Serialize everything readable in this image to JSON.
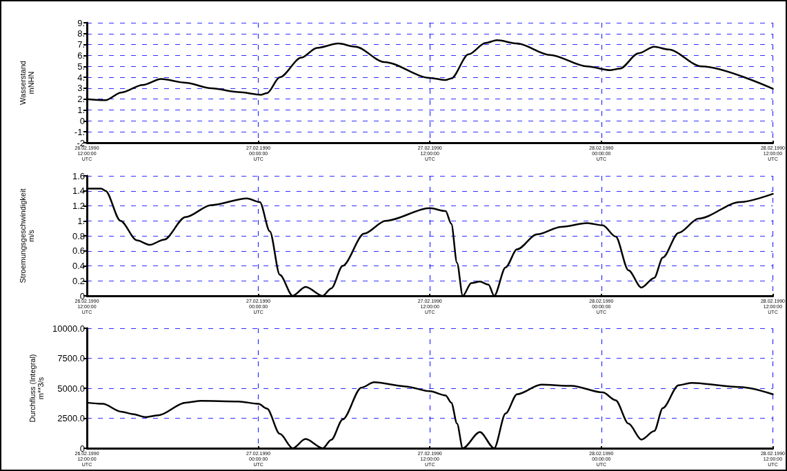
{
  "chart_data": [
    {
      "type": "line",
      "ylabel": "Wasserstand\nmNHN",
      "color": "#000000",
      "marker": "none",
      "grid": true,
      "x": [
        "1990-02-26T12:00",
        "1990-02-26T13:18",
        "1990-02-26T14:24",
        "1990-02-26T15:54",
        "1990-02-26T17:12",
        "1990-02-26T18:54",
        "1990-02-26T20:42",
        "1990-02-26T22:36",
        "1990-02-27T00:12",
        "1990-02-27T00:36",
        "1990-02-27T01:30",
        "1990-02-27T03:00",
        "1990-02-27T04:06",
        "1990-02-27T05:36",
        "1990-02-27T06:48",
        "1990-02-27T08:48",
        "1990-02-27T12:00",
        "1990-02-27T13:06",
        "1990-02-27T13:30",
        "1990-02-27T14:42",
        "1990-02-27T15:54",
        "1990-02-27T16:42",
        "1990-02-27T18:06",
        "1990-02-27T20:24",
        "1990-02-27T23:00",
        "1990-02-28T00:36",
        "1990-02-28T01:18",
        "1990-02-28T02:36",
        "1990-02-28T03:42",
        "1990-02-28T04:42",
        "1990-02-28T07:00",
        "1990-02-28T12:00"
      ],
      "values": [
        2.0,
        1.9,
        2.6,
        3.3,
        3.85,
        3.5,
        3.0,
        2.65,
        2.4,
        2.55,
        4.0,
        5.8,
        6.7,
        7.1,
        6.8,
        5.4,
        3.95,
        3.75,
        3.9,
        6.1,
        7.15,
        7.4,
        7.1,
        6.05,
        5.0,
        4.65,
        4.8,
        6.2,
        6.8,
        6.55,
        5.0,
        2.95
      ],
      "xlim": [
        "1990-02-26T12:00",
        "1990-02-28T12:00"
      ],
      "xticks": [
        {
          "value": "1990-02-26T12:00",
          "label": "26.02.1990\n12:00:00\nUTC"
        },
        {
          "value": "1990-02-27T00:00",
          "label": "27.02.1990\n00:00:00\nUTC"
        },
        {
          "value": "1990-02-27T12:00",
          "label": "27.02.1990\n12:00:00\nUTC"
        },
        {
          "value": "1990-02-28T00:00",
          "label": "28.02.1990\n00:00:00\nUTC"
        },
        {
          "value": "1990-02-28T12:00",
          "label": "28.02.1990\n12:00:00\nUTC"
        }
      ],
      "ylim": [
        -2,
        9
      ],
      "yticks": [
        {
          "value": -2,
          "label": "-2"
        },
        {
          "value": -1,
          "label": "-1."
        },
        0,
        {
          "value": 1,
          "label": "1."
        },
        {
          "value": 2,
          "label": "2."
        },
        {
          "value": 3,
          "label": "3."
        },
        {
          "value": 4,
          "label": "4."
        },
        {
          "value": 5,
          "label": "5."
        },
        {
          "value": 6,
          "label": "6."
        },
        {
          "value": 7,
          "label": "7."
        },
        {
          "value": 8,
          "label": "8."
        },
        {
          "value": 9,
          "label": "9."
        }
      ]
    },
    {
      "type": "line",
      "ylabel": "Stroemungsgeschwindigkeit\nm/s",
      "color": "#000000",
      "marker": "none",
      "grid": true,
      "x": [
        "1990-02-26T12:00",
        "1990-02-26T13:00",
        "1990-02-26T13:18",
        "1990-02-26T14:21",
        "1990-02-26T15:30",
        "1990-02-26T16:24",
        "1990-02-26T17:24",
        "1990-02-26T18:54",
        "1990-02-26T20:42",
        "1990-02-26T23:12",
        "1990-02-27T00:06",
        "1990-02-27T00:48",
        "1990-02-27T01:30",
        "1990-02-27T02:24",
        "1990-02-27T03:18",
        "1990-02-27T04:30",
        "1990-02-27T05:06",
        "1990-02-27T05:54",
        "1990-02-27T07:24",
        "1990-02-27T08:54",
        "1990-02-27T12:00",
        "1990-02-27T13:06",
        "1990-02-27T13:30",
        "1990-02-27T13:54",
        "1990-02-27T14:18",
        "1990-02-27T14:54",
        "1990-02-27T15:30",
        "1990-02-27T16:06",
        "1990-02-27T16:30",
        "1990-02-27T17:18",
        "1990-02-27T18:06",
        "1990-02-27T19:30",
        "1990-02-27T21:12",
        "1990-02-27T23:00",
        "1990-02-28T00:06",
        "1990-02-28T01:00",
        "1990-02-28T01:54",
        "1990-02-28T02:48",
        "1990-02-28T03:42",
        "1990-02-28T04:18",
        "1990-02-28T05:24",
        "1990-02-28T06:48",
        "1990-02-28T09:42",
        "1990-02-28T12:00"
      ],
      "values": [
        1.43,
        1.43,
        1.4,
        1.0,
        0.74,
        0.68,
        0.75,
        1.05,
        1.21,
        1.3,
        1.25,
        0.86,
        0.28,
        0,
        0.12,
        0,
        0.1,
        0.4,
        0.83,
        1.0,
        1.17,
        1.13,
        0.96,
        0.44,
        0,
        0.17,
        0.19,
        0.15,
        0,
        0.38,
        0.62,
        0.82,
        0.92,
        0.97,
        0.94,
        0.79,
        0.34,
        0.11,
        0.24,
        0.51,
        0.84,
        1.03,
        1.25,
        1.36
      ],
      "xlim": [
        "1990-02-26T12:00",
        "1990-02-28T12:00"
      ],
      "xticks": [
        {
          "value": "1990-02-26T12:00",
          "label": "26.02.1990\n12:00:00\nUTC"
        },
        {
          "value": "1990-02-27T00:00",
          "label": "27.02.1990\n00:00:00\nUTC"
        },
        {
          "value": "1990-02-27T12:00",
          "label": "27.02.1990\n12:00:00\nUTC"
        },
        {
          "value": "1990-02-28T00:00",
          "label": "28.02.1990\n00:00:00\nUTC"
        },
        {
          "value": "1990-02-28T12:00",
          "label": "28.02.1990\n12:00:00\nUTC"
        }
      ],
      "ylim": [
        0,
        1.6
      ],
      "yticks": [
        0,
        0.2,
        0.4,
        0.6,
        0.8,
        {
          "value": 1,
          "label": "1."
        },
        1.2,
        1.4,
        1.6
      ]
    },
    {
      "type": "line",
      "ylabel": "Durchfluss (Integral)\nm**3/s",
      "color": "#000000",
      "marker": "none",
      "grid": true,
      "x": [
        "1990-02-26T12:00",
        "1990-02-26T13:06",
        "1990-02-26T14:24",
        "1990-02-26T15:12",
        "1990-02-26T16:06",
        "1990-02-26T17:00",
        "1990-02-26T18:54",
        "1990-02-26T20:00",
        "1990-02-26T22:36",
        "1990-02-27T00:00",
        "1990-02-27T00:36",
        "1990-02-27T01:30",
        "1990-02-27T02:24",
        "1990-02-27T03:18",
        "1990-02-27T04:30",
        "1990-02-27T05:06",
        "1990-02-27T05:54",
        "1990-02-27T07:12",
        "1990-02-27T08:06",
        "1990-02-27T10:18",
        "1990-02-27T12:00",
        "1990-02-27T13:06",
        "1990-02-27T13:30",
        "1990-02-27T13:54",
        "1990-02-27T14:18",
        "1990-02-27T15:30",
        "1990-02-27T16:30",
        "1990-02-27T17:18",
        "1990-02-27T18:06",
        "1990-02-27T19:48",
        "1990-02-27T21:54",
        "1990-02-28T00:06",
        "1990-02-28T01:00",
        "1990-02-28T01:54",
        "1990-02-28T02:48",
        "1990-02-28T03:42",
        "1990-02-28T04:18",
        "1990-02-28T05:24",
        "1990-02-28T06:18",
        "1990-02-28T09:42",
        "1990-02-28T12:00"
      ],
      "values": [
        3800,
        3700,
        3050,
        2850,
        2600,
        2750,
        3800,
        3950,
        3900,
        3700,
        3300,
        1200,
        0,
        770,
        0,
        700,
        2400,
        5050,
        5500,
        5150,
        4750,
        4400,
        3800,
        2050,
        0,
        1350,
        0,
        2900,
        4500,
        5300,
        5200,
        4650,
        4000,
        2050,
        720,
        1430,
        3350,
        5250,
        5450,
        5100,
        4500
      ],
      "xlim": [
        "1990-02-26T12:00",
        "1990-02-28T12:00"
      ],
      "xticks": [
        {
          "value": "1990-02-26T12:00",
          "label": "26.02.1990\n12:00:00\nUTC"
        },
        {
          "value": "1990-02-27T00:00",
          "label": "27.02.1990\n00:00:00\nUTC"
        },
        {
          "value": "1990-02-27T12:00",
          "label": "27.02.1990\n12:00:00\nUTC"
        },
        {
          "value": "1990-02-28T00:00",
          "label": "28.02.1990\n00:00:00\nUTC"
        },
        {
          "value": "1990-02-28T12:00",
          "label": "28.02.1990\n12:00:00\nUTC"
        }
      ],
      "ylim": [
        0,
        10000
      ],
      "yticks": [
        0,
        {
          "value": 2500,
          "label": "2500.0"
        },
        {
          "value": 5000,
          "label": "5000.0"
        },
        {
          "value": 7500,
          "label": "7500.0"
        },
        {
          "value": 10000,
          "label": "10000.0"
        }
      ]
    }
  ]
}
